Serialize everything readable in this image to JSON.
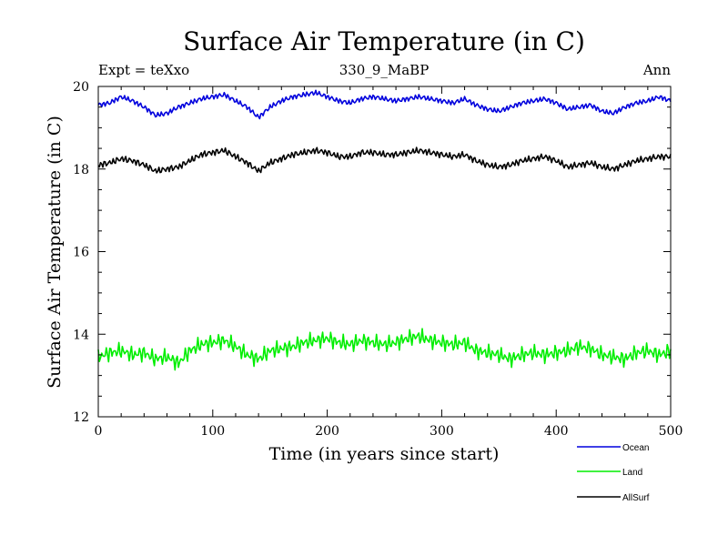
{
  "chart_data": {
    "type": "line",
    "title": "Surface Air Temperature (in C)",
    "subtitle": "330_9_MaBP",
    "left_label": "Expt = teXxo",
    "right_label": "Ann",
    "xlabel": "Time (in years since start)",
    "ylabel": "Surface Air Temperature (in C)",
    "xlim": [
      0,
      500
    ],
    "ylim": [
      12,
      20
    ],
    "x_ticks": [
      0,
      100,
      200,
      300,
      400,
      500
    ],
    "y_ticks": [
      12,
      14,
      16,
      18,
      20
    ],
    "x_tick_labels": [
      "0",
      "100",
      "200",
      "300",
      "400",
      "500"
    ],
    "y_tick_labels": [
      "12",
      "14",
      "16",
      "18",
      "20"
    ],
    "grid": false,
    "legend_position": "bottom-right",
    "series": [
      {
        "name": "Ocean",
        "color": "#0000dd",
        "x": [
          0,
          10,
          20,
          30,
          40,
          50,
          60,
          70,
          80,
          90,
          100,
          110,
          120,
          130,
          140,
          150,
          160,
          170,
          180,
          190,
          200,
          210,
          220,
          230,
          240,
          250,
          260,
          270,
          280,
          290,
          300,
          310,
          320,
          330,
          340,
          350,
          360,
          370,
          380,
          390,
          400,
          410,
          420,
          430,
          440,
          450,
          460,
          470,
          480,
          490,
          500
        ],
        "values": [
          19.55,
          19.6,
          19.75,
          19.65,
          19.5,
          19.3,
          19.35,
          19.5,
          19.6,
          19.7,
          19.75,
          19.8,
          19.65,
          19.5,
          19.25,
          19.5,
          19.65,
          19.75,
          19.8,
          19.85,
          19.75,
          19.65,
          19.6,
          19.7,
          19.75,
          19.7,
          19.65,
          19.7,
          19.75,
          19.7,
          19.65,
          19.6,
          19.7,
          19.55,
          19.45,
          19.4,
          19.5,
          19.6,
          19.65,
          19.7,
          19.6,
          19.45,
          19.5,
          19.55,
          19.4,
          19.35,
          19.5,
          19.6,
          19.65,
          19.75,
          19.65
        ]
      },
      {
        "name": "Land",
        "color": "#00ee00",
        "x": [
          0,
          10,
          20,
          30,
          40,
          50,
          60,
          70,
          80,
          90,
          100,
          110,
          120,
          130,
          140,
          150,
          160,
          170,
          180,
          190,
          200,
          210,
          220,
          230,
          240,
          250,
          260,
          270,
          280,
          290,
          300,
          310,
          320,
          330,
          340,
          350,
          360,
          370,
          380,
          390,
          400,
          410,
          420,
          430,
          440,
          450,
          460,
          470,
          480,
          490,
          500
        ],
        "values": [
          13.45,
          13.55,
          13.6,
          13.5,
          13.55,
          13.4,
          13.45,
          13.3,
          13.6,
          13.75,
          13.8,
          13.85,
          13.7,
          13.5,
          13.4,
          13.6,
          13.65,
          13.7,
          13.8,
          13.85,
          13.9,
          13.8,
          13.75,
          13.85,
          13.8,
          13.75,
          13.8,
          13.9,
          13.95,
          13.85,
          13.8,
          13.75,
          13.8,
          13.6,
          13.55,
          13.5,
          13.4,
          13.5,
          13.55,
          13.5,
          13.55,
          13.6,
          13.7,
          13.65,
          13.5,
          13.45,
          13.4,
          13.55,
          13.6,
          13.5,
          13.6
        ]
      },
      {
        "name": "AllSurf",
        "color": "#000000",
        "x": [
          0,
          10,
          20,
          30,
          40,
          50,
          60,
          70,
          80,
          90,
          100,
          110,
          120,
          130,
          140,
          150,
          160,
          170,
          180,
          190,
          200,
          210,
          220,
          230,
          240,
          250,
          260,
          270,
          280,
          290,
          300,
          310,
          320,
          330,
          340,
          350,
          360,
          370,
          380,
          390,
          400,
          410,
          420,
          430,
          440,
          450,
          460,
          470,
          480,
          490,
          500
        ],
        "values": [
          18.1,
          18.15,
          18.25,
          18.2,
          18.1,
          17.95,
          18.0,
          18.05,
          18.2,
          18.35,
          18.4,
          18.45,
          18.3,
          18.15,
          17.95,
          18.15,
          18.25,
          18.35,
          18.4,
          18.45,
          18.4,
          18.3,
          18.3,
          18.4,
          18.4,
          18.35,
          18.35,
          18.4,
          18.45,
          18.4,
          18.35,
          18.3,
          18.35,
          18.2,
          18.1,
          18.05,
          18.1,
          18.2,
          18.25,
          18.3,
          18.2,
          18.05,
          18.1,
          18.15,
          18.05,
          18.0,
          18.1,
          18.2,
          18.25,
          18.3,
          18.3
        ]
      }
    ]
  }
}
